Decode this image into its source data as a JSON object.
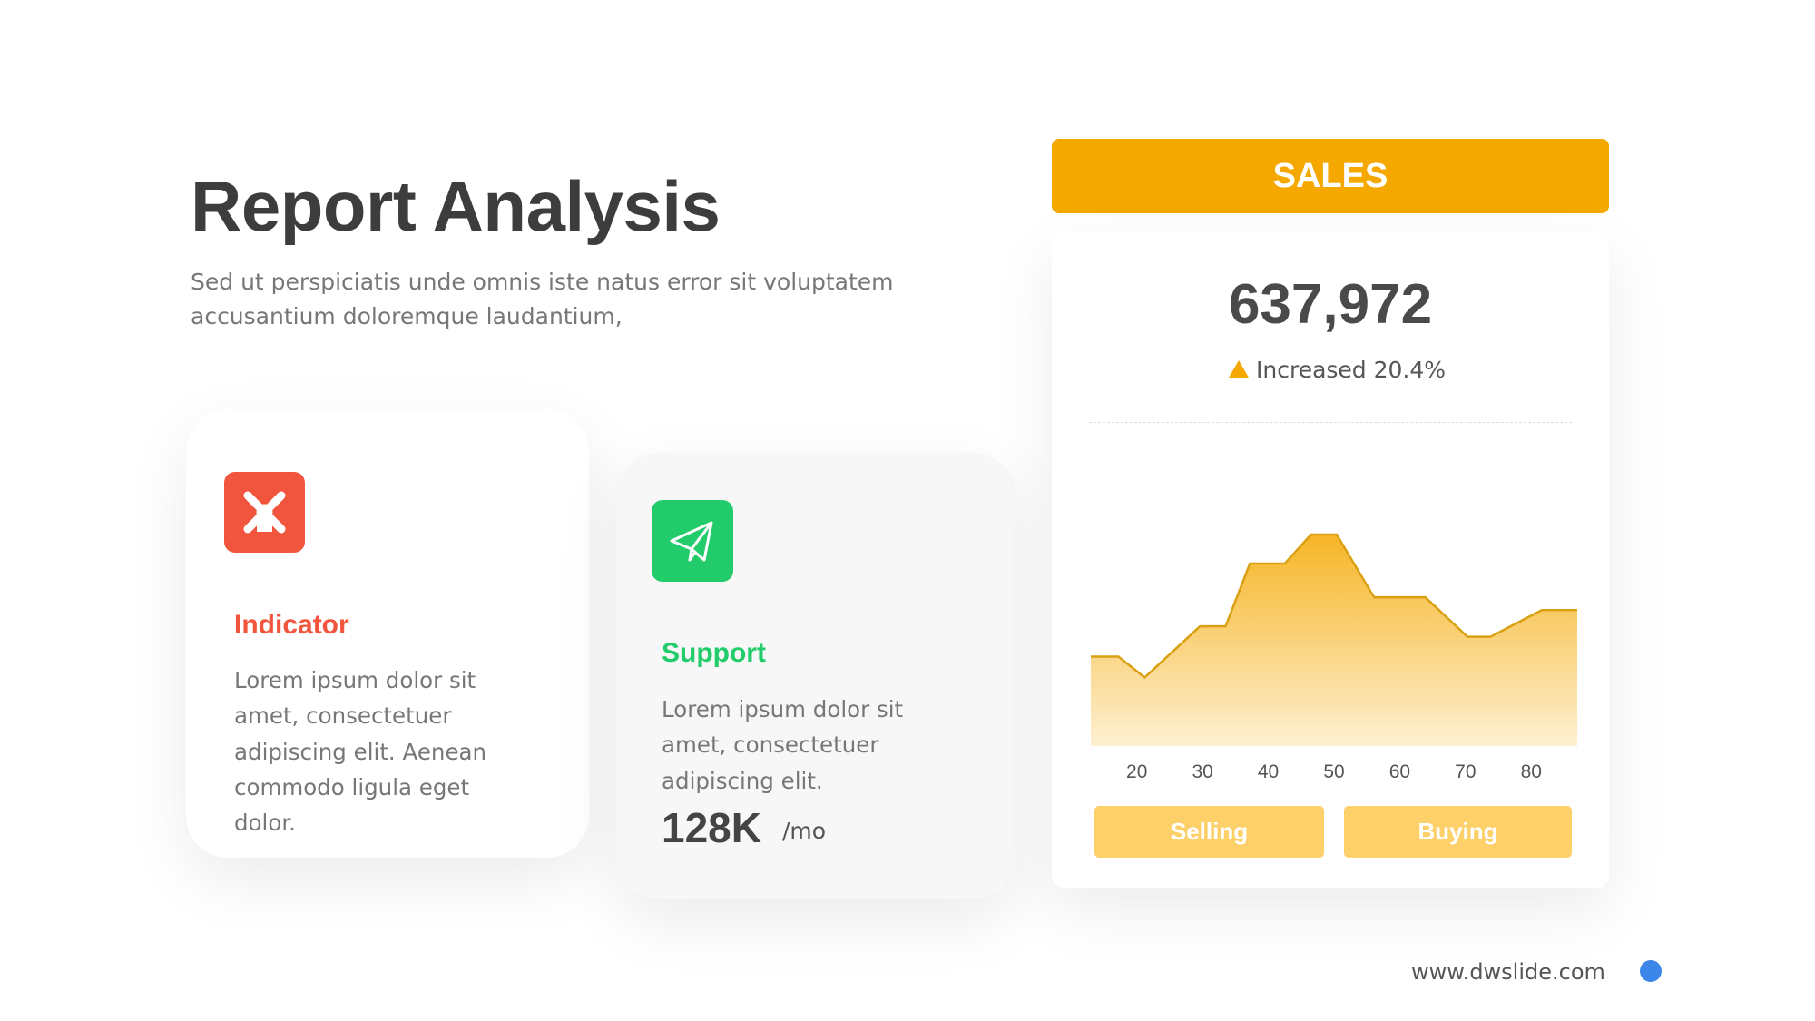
{
  "header": {
    "title": "Report Analysis",
    "subtitle": [
      "Sed ut perspiciatis unde omnis iste natus error sit voluptatem",
      "accusantium doloremque laudantium,"
    ]
  },
  "cards": [
    {
      "title": "Indicator",
      "text": [
        "Lorem ipsum dolor sit",
        "amet, consectetuer",
        "adipiscing elit. Aenean",
        "commodo ligula eget",
        "dolor."
      ]
    },
    {
      "title": "Support",
      "text": [
        "Lorem ipsum dolor sit",
        "amet, consectetuer",
        "adipiscing elit."
      ],
      "stat": "128K",
      "stat_unit": "/mo"
    }
  ],
  "sales": {
    "title": "SALES",
    "total": "637,972",
    "change": "Increased 20.4%",
    "buttons": [
      "Selling",
      "Buying"
    ]
  },
  "chart_data": {
    "type": "area",
    "color": "#f5a800",
    "x": [
      13,
      17.2,
      21.2,
      29.6,
      33.5,
      37.2,
      42.5,
      46.5,
      50.4,
      56.1,
      63.9,
      70.3,
      73.8,
      81.6,
      87
    ],
    "values": [
      77,
      77,
      59,
      103,
      103,
      157,
      157,
      182,
      182,
      128,
      128,
      94,
      94,
      117,
      117
    ],
    "xlim": [
      13,
      87
    ],
    "ylim": [
      0,
      200
    ],
    "xticks": [
      20,
      30,
      40,
      50,
      60,
      70,
      80
    ]
  },
  "footer": {
    "url": "www.dwslide.com"
  }
}
